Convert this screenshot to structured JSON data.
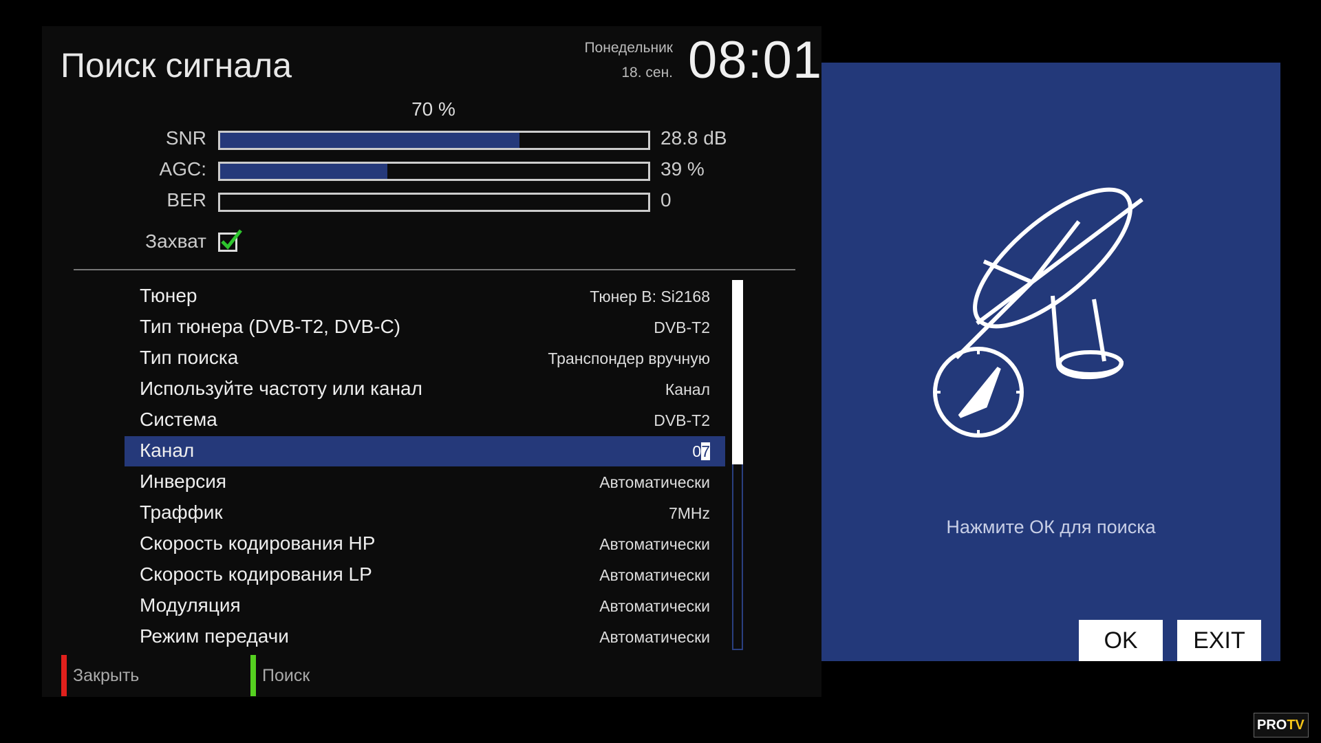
{
  "header": {
    "title": "Поиск сигнала",
    "day": "Понедельник",
    "date": "18. сен.",
    "time": "08:01"
  },
  "signal": {
    "quality": "70 %",
    "meters": [
      {
        "label": "SNR",
        "value": "28.8 dB",
        "level": 0.7
      },
      {
        "label": "AGC:",
        "value": "39 %",
        "level": 0.39
      },
      {
        "label": "BER",
        "value": "0",
        "level": 0
      }
    ],
    "lock_label": "Захват",
    "locked": true
  },
  "settings": [
    {
      "label": "Тюнер",
      "value": "Тюнер B: Si2168"
    },
    {
      "label": "Тип тюнера (DVB-T2, DVB-C)",
      "value": "DVB-T2"
    },
    {
      "label": "Тип поиска",
      "value": "Транспондер вручную"
    },
    {
      "label": "Используйте частоту или канал",
      "value": "Канал"
    },
    {
      "label": "Система",
      "value": "DVB-T2"
    },
    {
      "label": "Канал",
      "value": "07",
      "selected": true
    },
    {
      "label": "Инверсия",
      "value": "Автоматически"
    },
    {
      "label": "Траффик",
      "value": "7MHz"
    },
    {
      "label": "Скорость кодирования HP",
      "value": "Автоматически"
    },
    {
      "label": "Скорость кодирования LP",
      "value": "Автоматически"
    },
    {
      "label": "Модуляция",
      "value": "Автоматически"
    },
    {
      "label": "Режим передачи",
      "value": "Автоматически"
    }
  ],
  "footer": {
    "close": "Закрыть",
    "search": "Поиск"
  },
  "dialog": {
    "hint": "Нажмите ОК для поиска",
    "ok": "OK",
    "exit": "EXIT",
    "icon": "satellite-dish-compass"
  },
  "watermark": {
    "text": "PROTV"
  },
  "colors": {
    "accent": "#25397a",
    "red": "#e0201c",
    "green": "#55d020",
    "check": "#2ec42e"
  }
}
